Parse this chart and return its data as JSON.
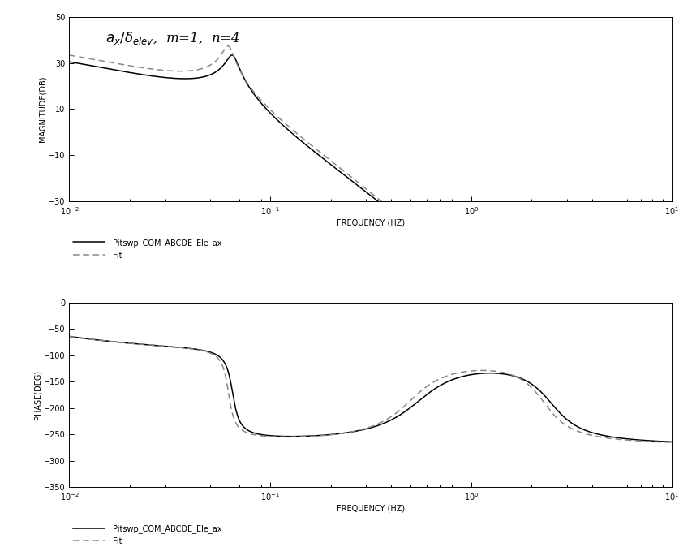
{
  "title": "$a_x/\\delta_{elev}$,  m=1,  n=4",
  "mag_ylabel": "MAGNITUDE(DB)",
  "phase_ylabel": "PHASE(DEG)",
  "xlabel": "FREQUENCY (HZ)",
  "legend1": "Pitswp_COM_ABCDE_Ele_ax",
  "legend2": "Fit",
  "freq_min": 0.01,
  "freq_max": 10.0,
  "mag_ylim": [
    -30,
    50
  ],
  "mag_yticks": [
    -30,
    -10,
    10,
    30,
    50
  ],
  "phase_ylim": [
    -350,
    0
  ],
  "phase_yticks": [
    -350,
    -300,
    -250,
    -200,
    -150,
    -100,
    -50,
    0
  ],
  "line_color": "#000000",
  "fit_color": "#888888"
}
